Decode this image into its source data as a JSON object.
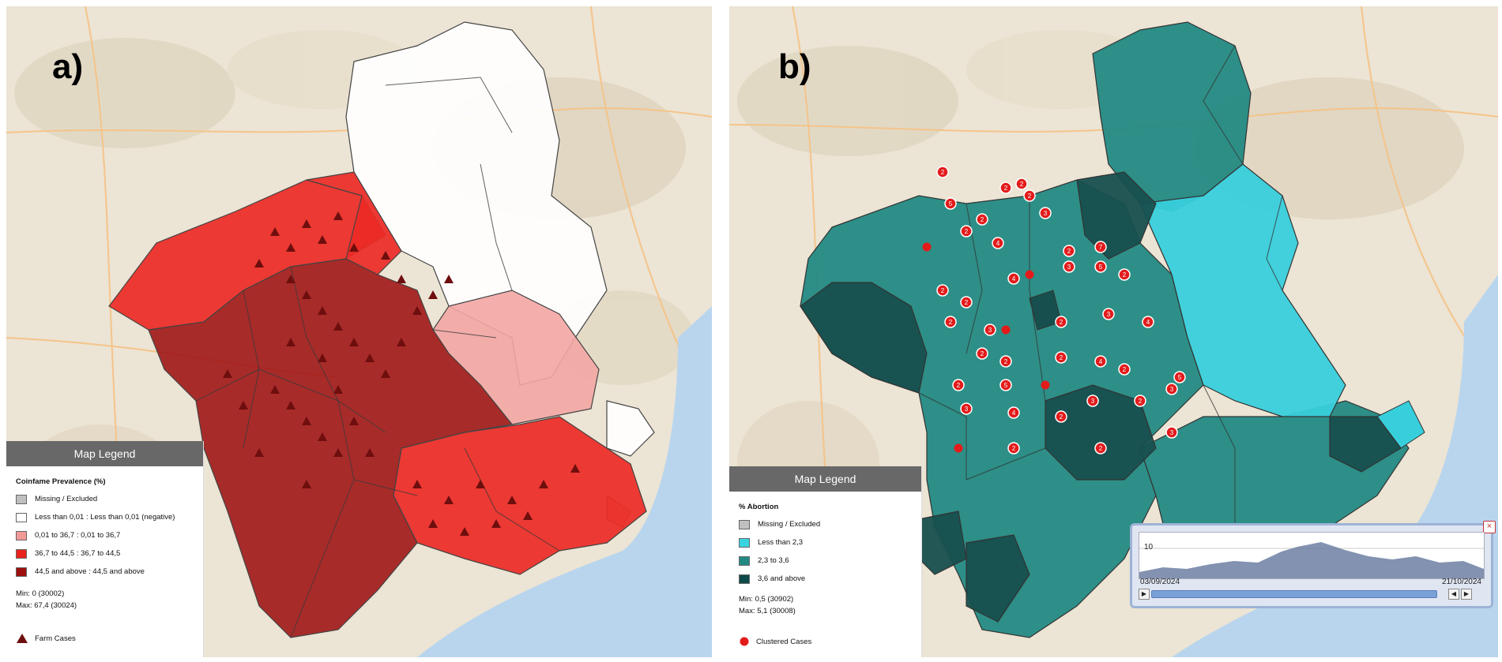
{
  "panels": [
    {
      "letter": "a)",
      "legend": {
        "header": "Map Legend",
        "title": "Coinfame Prevalence (%)",
        "items": [
          {
            "label": "Missing / Excluded",
            "color": "#c0c0c0"
          },
          {
            "label": "Less than 0,01 : Less than 0,01 (negative)",
            "color": "#ffffff"
          },
          {
            "label": "0,01 to 36,7 : 0,01 to 36,7",
            "color": "#f29a98"
          },
          {
            "label": "36,7 to 44,5 : 36,7 to 44,5",
            "color": "#e8211d"
          },
          {
            "label": "44,5 and above : 44,5 and above",
            "color": "#9e0f0f"
          }
        ],
        "min": "Min: 0 (30002)",
        "max": "Max: 67,4 (30024)",
        "symbol_label": "Farm Cases",
        "symbol": "triangle-icon",
        "symbol_color": "#6e0e0e"
      }
    },
    {
      "letter": "b)",
      "legend": {
        "header": "Map Legend",
        "title": "% Abortion",
        "items": [
          {
            "label": "Missing / Excluded",
            "color": "#c0c0c0"
          },
          {
            "label": "Less than 2,3",
            "color": "#3ad3e0"
          },
          {
            "label": "2,3 to 3,6",
            "color": "#238a83"
          },
          {
            "label": "3,6 and above",
            "color": "#0f4a4a"
          }
        ],
        "min": "Min: 0,5 (30902)",
        "max": "Max: 5,1 (30008)",
        "symbol_label": "Clustered Cases",
        "symbol": "circle-icon",
        "symbol_color": "#e31b1b"
      }
    }
  ],
  "cluster_counts": [
    "2",
    "2",
    "5",
    "2",
    "2",
    "3",
    "2",
    "2",
    "4",
    "2",
    "7",
    "2",
    "2",
    "4",
    "3",
    "5",
    "2",
    "2",
    "3",
    "2",
    "3",
    "4",
    "2",
    "2",
    "2",
    "4",
    "2",
    "5",
    "2",
    "5",
    "3",
    "4",
    "3",
    "2",
    "3",
    "2",
    "2",
    "2",
    "3",
    "4",
    "3",
    "2",
    "2",
    "2"
  ],
  "timeline": {
    "y_tick": "10",
    "start_date": "03/09/2024",
    "end_date": "21/10/2024"
  }
}
